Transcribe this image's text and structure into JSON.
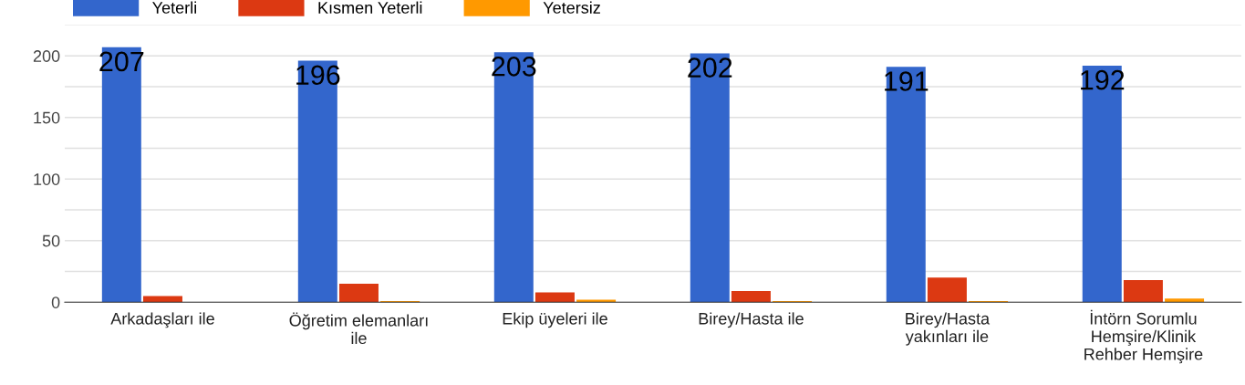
{
  "chart_data": {
    "type": "bar",
    "categories": [
      "Arkadaşları ile",
      "Öğretim elemanları\nile",
      "Ekip üyeleri ile",
      "Birey/Hasta ile",
      "Birey/Hasta\nyakınları ile",
      "İntörn Sorumlu\nHemşire/Klinik\nRehber Hemşire"
    ],
    "series": [
      {
        "name": "Yeterli",
        "color": "#3366cc",
        "values": [
          207,
          196,
          203,
          202,
          191,
          192
        ],
        "value_labels": [
          "207",
          "196",
          "203",
          "202",
          "191",
          "192"
        ]
      },
      {
        "name": "Kısmen Yeterli",
        "color": "#dc3912",
        "values": [
          5,
          15,
          8,
          9,
          20,
          18
        ]
      },
      {
        "name": "Yetersiz",
        "color": "#ff9900",
        "values": [
          0,
          1,
          2,
          1,
          1,
          3
        ]
      }
    ],
    "ylim": [
      0,
      225
    ],
    "yticks": [
      0,
      {
        "value": 25,
        "label": null
      },
      50,
      {
        "value": 75,
        "label": null
      },
      100,
      {
        "value": 125,
        "label": null
      },
      150,
      {
        "value": 175,
        "label": null
      },
      200,
      {
        "value": 225,
        "label": null
      }
    ],
    "grid": "y",
    "legend": "top left"
  }
}
